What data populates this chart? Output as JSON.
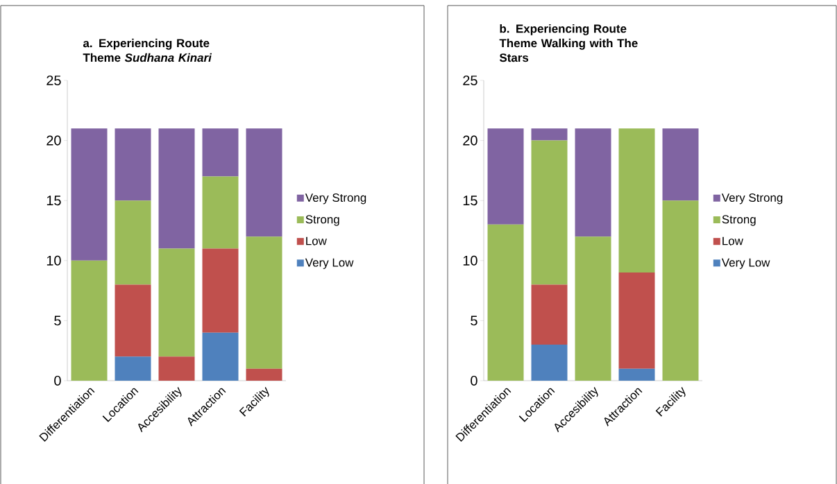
{
  "chart_data": [
    {
      "type": "bar",
      "stacked": true,
      "title": "a. Experiencing Route Theme *Sudhana Kinari*",
      "categories": [
        "Differentiation",
        "Location",
        "Accesibility",
        "Attraction",
        "Facility"
      ],
      "series": [
        {
          "name": "Very Low",
          "color": "#4f81bd",
          "values": [
            0,
            2,
            0,
            4,
            0
          ]
        },
        {
          "name": "Low",
          "color": "#c0504d",
          "values": [
            0,
            6,
            2,
            7,
            1
          ]
        },
        {
          "name": "Strong",
          "color": "#9bbb59",
          "values": [
            10,
            7,
            9,
            6,
            11
          ]
        },
        {
          "name": "Very Strong",
          "color": "#8064a2",
          "values": [
            11,
            6,
            10,
            4,
            9
          ]
        }
      ],
      "ylim": [
        0,
        25
      ],
      "yticks": [
        0,
        5,
        10,
        15,
        20,
        25
      ],
      "legend": "right"
    },
    {
      "type": "bar",
      "stacked": true,
      "title": "b. Experiencing Route Theme Walking with The Stars",
      "categories": [
        "Differentiation",
        "Location",
        "Accesibility",
        "Attraction",
        "Facility"
      ],
      "series": [
        {
          "name": "Very Low",
          "color": "#4f81bd",
          "values": [
            0,
            3,
            0,
            1,
            0
          ]
        },
        {
          "name": "Low",
          "color": "#c0504d",
          "values": [
            0,
            5,
            0,
            8,
            0
          ]
        },
        {
          "name": "Strong",
          "color": "#9bbb59",
          "values": [
            13,
            12,
            12,
            12,
            15
          ]
        },
        {
          "name": "Very Strong",
          "color": "#8064a2",
          "values": [
            8,
            1,
            9,
            0,
            6
          ]
        }
      ],
      "ylim": [
        0,
        25
      ],
      "yticks": [
        0,
        5,
        10,
        15,
        20,
        25
      ],
      "legend": "right"
    }
  ]
}
